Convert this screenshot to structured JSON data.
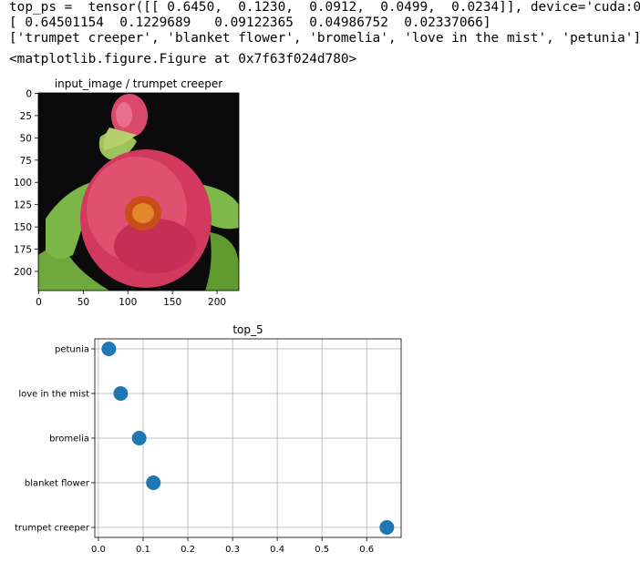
{
  "output": {
    "line1": "top_ps =  tensor([[ 0.6450,  0.1230,  0.0912,  0.0499,  0.0234]], device='cuda:0')",
    "line2": "[ 0.64501154  0.1229689   0.09122365  0.04986752  0.02337066]",
    "line3": "['trumpet creeper', 'blanket flower', 'bromelia', 'love in the mist', 'petunia']",
    "figure_repr": "<matplotlib.figure.Figure at 0x7f63f024d780>"
  },
  "image_panel": {
    "title": "input_image / trumpet creeper",
    "y_ticks": [
      "0",
      "25",
      "50",
      "75",
      "100",
      "125",
      "150",
      "175",
      "200"
    ],
    "x_ticks": [
      "0",
      "50",
      "100",
      "150",
      "200"
    ]
  },
  "chart_data": {
    "type": "scatter",
    "title": "top_5",
    "categories": [
      "trumpet creeper",
      "blanket flower",
      "bromelia",
      "love in the mist",
      "petunia"
    ],
    "values": [
      0.64501154,
      0.1229689,
      0.09122365,
      0.04986752,
      0.02337066
    ],
    "x_ticks": [
      "0.0",
      "0.1",
      "0.2",
      "0.3",
      "0.4",
      "0.5",
      "0.6"
    ],
    "xlim": [
      -0.008,
      0.677
    ],
    "grid": true,
    "color": "#1f77b4"
  }
}
